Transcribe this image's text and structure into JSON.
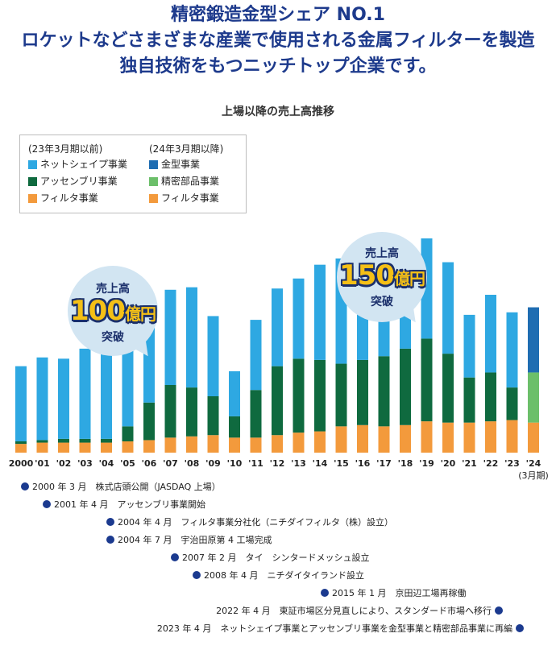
{
  "headline": {
    "line1": "精密鍛造金型シェア NO.1",
    "line2": "ロケットなどさまざまな産業で使用される金属フィルターを製造",
    "line3": "独自技術をもつニッチトップ企業です。"
  },
  "colors": {
    "net": "#2ea8e2",
    "assembly": "#0f6a3f",
    "filter": "#f39a3c",
    "mold": "#1f6db2",
    "precision": "#6cbf6a",
    "brand": "#1d3a8c"
  },
  "legend": {
    "before_heading": "(23年3月期以前)",
    "after_heading": "(24年3月期以降)",
    "before_items": [
      "ネットシェイプ事業",
      "アッセンブリ事業",
      "フィルタ事業"
    ],
    "after_items": [
      "金型事業",
      "精密部品事業",
      "フィルタ事業"
    ]
  },
  "bubble100": {
    "top": "売上高",
    "num": "100",
    "unit": "億円",
    "bottom": "突破"
  },
  "bubble150": {
    "top": "売上高",
    "num": "150",
    "unit": "億円",
    "bottom": "突破"
  },
  "chart_data": {
    "type": "bar",
    "stacked": true,
    "title": "上場以降の売上高推移",
    "categories": [
      "2000",
      "'01",
      "'02",
      "'03",
      "'04",
      "'05",
      "'06",
      "'07",
      "'08",
      "'09",
      "'10",
      "'11",
      "'12",
      "'13",
      "'14",
      "'15",
      "'16",
      "'17",
      "'18",
      "'19",
      "'20",
      "'21",
      "'22",
      "'23",
      "'24"
    ],
    "last_category_note": "(3月期)",
    "series": [
      {
        "name": "フィルタ事業",
        "values": [
          7,
          8,
          8,
          8,
          8,
          9,
          10,
          12,
          13,
          14,
          12,
          12,
          14,
          16,
          17,
          21,
          22,
          21,
          22,
          25,
          24,
          24,
          25,
          26,
          24
        ]
      },
      {
        "name": "アッセンブリ事業",
        "values": [
          2,
          2,
          3,
          3,
          3,
          12,
          30,
          42,
          39,
          31,
          17,
          38,
          55,
          59,
          57,
          50,
          52,
          56,
          61,
          66,
          55,
          36,
          39,
          26,
          0
        ]
      },
      {
        "name": "ネットシェイプ事業",
        "values": [
          60,
          66,
          64,
          72,
          75,
          74,
          74,
          76,
          80,
          64,
          36,
          56,
          62,
          64,
          76,
          84,
          77,
          73,
          72,
          80,
          73,
          50,
          62,
          60,
          0
        ]
      },
      {
        "name": "精密部品事業",
        "values": [
          0,
          0,
          0,
          0,
          0,
          0,
          0,
          0,
          0,
          0,
          0,
          0,
          0,
          0,
          0,
          0,
          0,
          0,
          0,
          0,
          0,
          0,
          0,
          0,
          40
        ]
      },
      {
        "name": "金型事業",
        "values": [
          0,
          0,
          0,
          0,
          0,
          0,
          0,
          0,
          0,
          0,
          0,
          0,
          0,
          0,
          0,
          0,
          0,
          0,
          0,
          0,
          0,
          0,
          0,
          0,
          52
        ]
      }
    ],
    "ylim": [
      0,
      180
    ],
    "grid": false,
    "legend_position": "top-left"
  },
  "timeline": [
    {
      "text": "2000 年 3 月　株式店頭公開（JASDAQ 上場）"
    },
    {
      "text": "2001 年 4 月　アッセンブリ事業開始"
    },
    {
      "text": "2004 年 4 月　フィルタ事業分社化（ニチダイフィルタ（株）設立）"
    },
    {
      "text": "2004 年 7 月　宇治田原第 4 工場完成"
    },
    {
      "text": "2007 年 2 月　タイ　シンタードメッシュ設立"
    },
    {
      "text": "2008 年 4 月　ニチダイタイランド設立"
    },
    {
      "text": "2015 年 1 月　京田辺工場再稼働"
    },
    {
      "text": "2022 年 4 月　東証市場区分見直しにより、スタンダード市場へ移行"
    },
    {
      "text": "2023 年 4 月　ネットシェイプ事業とアッセンブリ事業を金型事業と精密部品事業に再編"
    }
  ]
}
